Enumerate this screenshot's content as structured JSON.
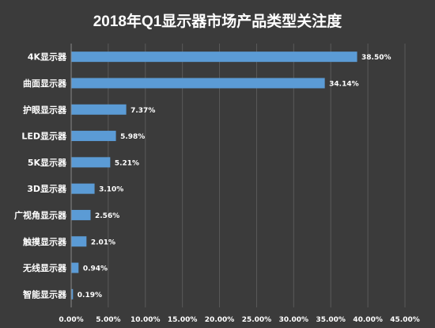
{
  "chart_data": {
    "type": "bar",
    "orientation": "horizontal",
    "title": "2018年Q1显示器市场产品类型关注度",
    "categories": [
      "4K显示器",
      "曲面显示器",
      "护眼显示器",
      "LED显示器",
      "5K显示器",
      "3D显示器",
      "广视角显示器",
      "触摸显示器",
      "无线显示器",
      "智能显示器"
    ],
    "values": [
      38.5,
      34.14,
      7.37,
      5.98,
      5.21,
      3.1,
      2.56,
      2.01,
      0.94,
      0.19
    ],
    "value_labels": [
      "38.50%",
      "34.14%",
      "7.37%",
      "5.98%",
      "5.21%",
      "3.10%",
      "2.56%",
      "2.01%",
      "0.94%",
      "0.19%"
    ],
    "xlim": [
      0,
      45
    ],
    "x_ticks": [
      0,
      5,
      10,
      15,
      20,
      25,
      30,
      35,
      40,
      45
    ],
    "x_tick_labels": [
      "0.00%",
      "5.00%",
      "10.00%",
      "15.00%",
      "20.00%",
      "25.00%",
      "30.00%",
      "35.00%",
      "40.00%",
      "45.00%"
    ],
    "grid": true,
    "bar_color": "#5b9bd5",
    "background_color": "#3b3b3b"
  }
}
